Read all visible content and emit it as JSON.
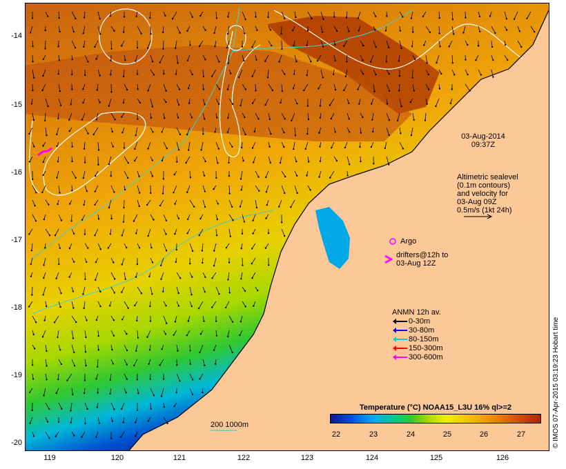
{
  "axes": {
    "lat_ticks": [
      "-14",
      "-15",
      "-16",
      "-17",
      "-18",
      "-19",
      "-20"
    ],
    "lon_ticks": [
      "119",
      "120",
      "121",
      "122",
      "123",
      "124",
      "125",
      "126"
    ]
  },
  "timestamp": {
    "date": "03-Aug-2014",
    "time": "09:37Z"
  },
  "altimetry_note": [
    "Altimetric sealevel",
    "(0.1m contours)",
    "and velocity for",
    "03-Aug 09Z",
    "0.5m/s (1kt 24h)"
  ],
  "argo_label": "Argo",
  "drifters_label": [
    "drifters@12h to",
    "03-Aug 12Z"
  ],
  "anmn": {
    "title": "ANMN 12h av.",
    "items": [
      {
        "label": "0-30m",
        "color": "#000000"
      },
      {
        "label": "30-80m",
        "color": "#0000ff"
      },
      {
        "label": "80-150m",
        "color": "#00d0d0"
      },
      {
        "label": "150-300m",
        "color": "#ff0000"
      },
      {
        "label": "300-600m",
        "color": "#ff00ff"
      }
    ]
  },
  "bathy_label": "200  1000m",
  "colorbar": {
    "title": "Temperature (°C) NOAA15_L3U 16% ql>=2",
    "ticks": [
      "22",
      "23",
      "24",
      "25",
      "26",
      "27"
    ]
  },
  "credit": "© IMOS 07-Apr-2015 03:19:23 Hobart time",
  "colors": {
    "land": "#fcc898",
    "contour": "#ffffff",
    "isobath": "#40d0d0",
    "drifter": "#ff00ff"
  }
}
